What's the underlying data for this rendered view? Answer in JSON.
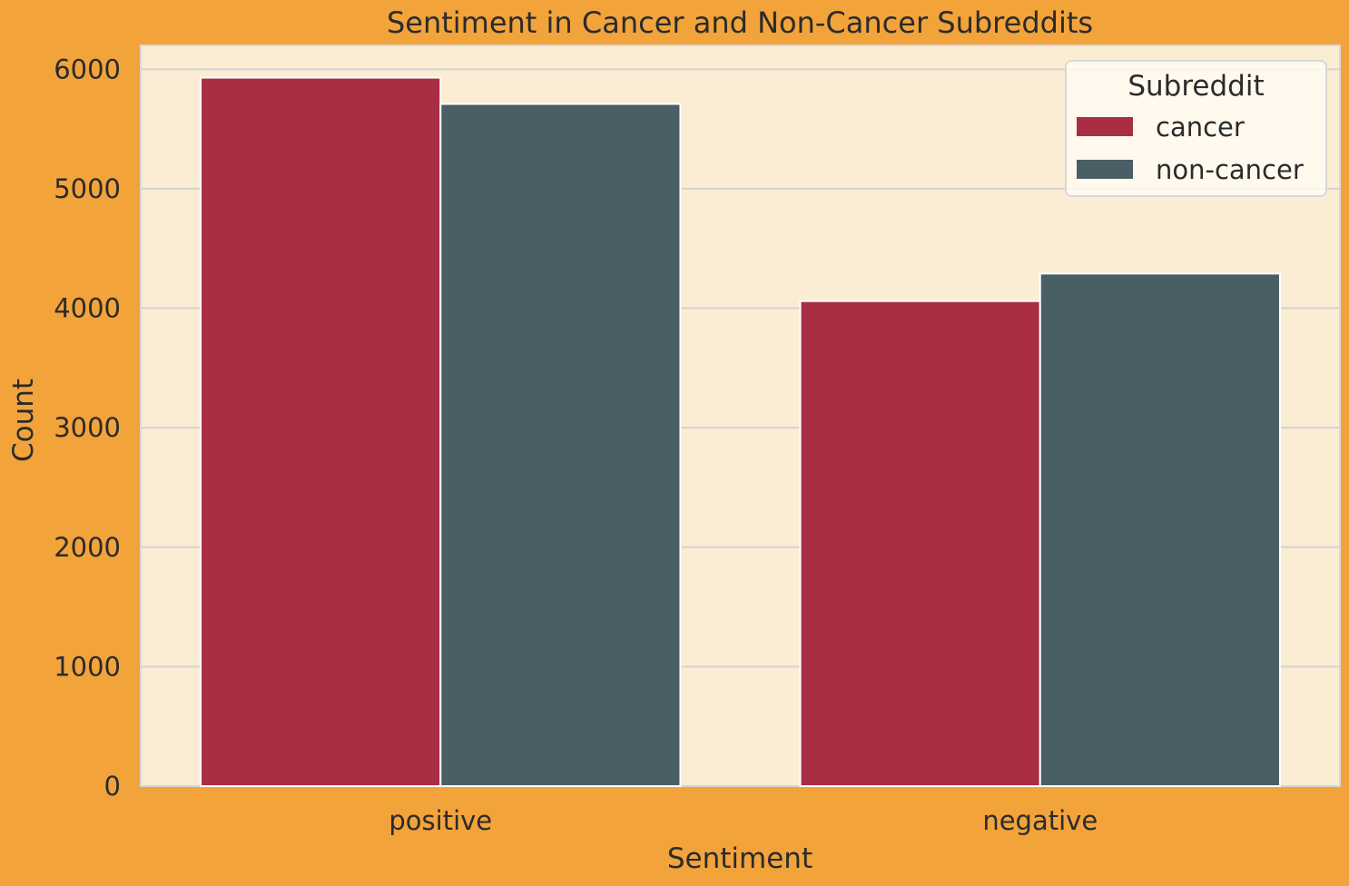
{
  "chart_data": {
    "type": "bar",
    "title": "Sentiment in Cancer and Non-Cancer Subreddits",
    "xlabel": "Sentiment",
    "ylabel": "Count",
    "categories": [
      "positive",
      "negative"
    ],
    "series": [
      {
        "name": "cancer",
        "values": [
          5930,
          4060
        ],
        "color": "#A92E44"
      },
      {
        "name": "non-cancer",
        "values": [
          5710,
          4290
        ],
        "color": "#4A5E65"
      }
    ],
    "ylim": [
      0,
      6200
    ],
    "yticks": [
      0,
      1000,
      2000,
      3000,
      4000,
      5000,
      6000
    ],
    "grid": true,
    "legend": {
      "title": "Subreddit",
      "placement": "top-right"
    },
    "colors": {
      "figure_background": "#F2A33A",
      "plot_background": "#FAEDD3",
      "grid": "#D3D3D3",
      "text": "#2b2b2b"
    }
  }
}
